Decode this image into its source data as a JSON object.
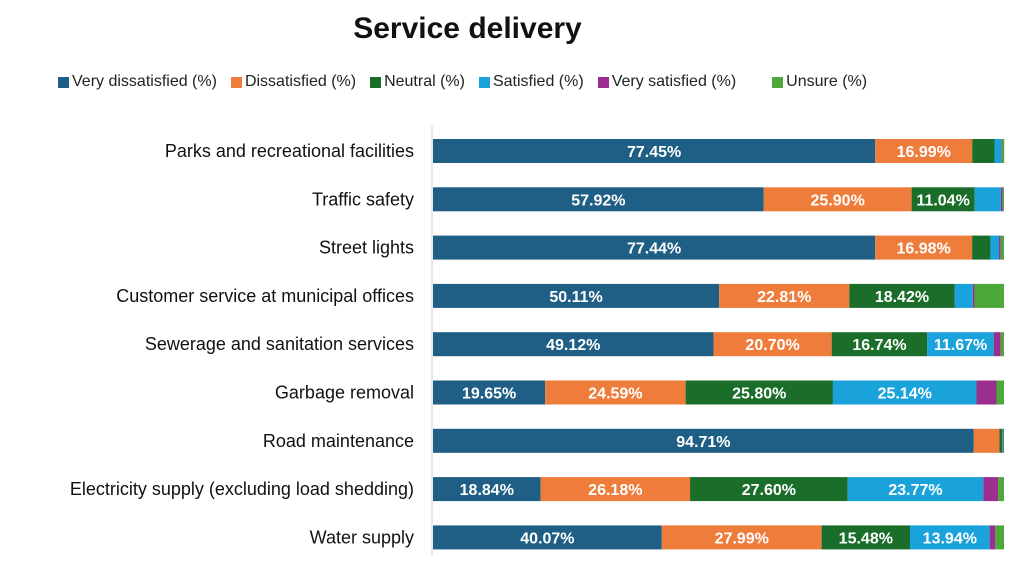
{
  "chart_data": {
    "type": "bar",
    "orientation": "horizontal",
    "stacked": true,
    "title": "Service delivery",
    "legend_position": "top",
    "grid": false,
    "xlim": [
      0,
      100
    ],
    "categories": [
      "Parks and recreational facilities",
      "Traffic safety",
      "Street lights",
      "Customer service at municipal offices",
      "Sewerage and sanitation services",
      "Garbage removal",
      "Road maintenance",
      "Electricity supply (excluding load shedding)",
      "Water supply"
    ],
    "series": [
      {
        "name": "Very dissatisfied (%)",
        "color": "#1f5f86",
        "values": [
          77.45,
          57.92,
          77.44,
          50.11,
          49.12,
          19.65,
          94.71,
          18.84,
          40.07
        ]
      },
      {
        "name": "Dissatisfied (%)",
        "color": "#ee7c3a",
        "values": [
          16.99,
          25.9,
          16.98,
          22.81,
          20.7,
          24.59,
          4.5,
          26.18,
          27.99
        ]
      },
      {
        "name": "Neutral (%)",
        "color": "#1a6e2a",
        "values": [
          3.9,
          11.04,
          3.2,
          18.42,
          16.74,
          25.8,
          0.5,
          27.6,
          15.48
        ]
      },
      {
        "name": "Satisfied (%)",
        "color": "#1aa3db",
        "values": [
          1.2,
          4.6,
          1.5,
          3.2,
          11.67,
          25.14,
          0.1,
          23.77,
          13.94
        ]
      },
      {
        "name": "Very satisfied (%)",
        "color": "#9b2e8f",
        "values": [
          0.1,
          0.3,
          0.3,
          0.3,
          1.2,
          3.5,
          0.1,
          2.6,
          1.0
        ]
      },
      {
        "name": "Unsure (%)",
        "color": "#4ba839",
        "values": [
          0.4,
          0.24,
          0.58,
          5.16,
          0.57,
          1.32,
          0.09,
          1.01,
          1.52
        ]
      }
    ],
    "data_labels": [
      [
        "77.45%",
        "16.99%",
        "",
        "",
        "",
        ""
      ],
      [
        "57.92%",
        "25.90%",
        "11.04%",
        "",
        "",
        ""
      ],
      [
        "77.44%",
        "16.98%",
        "",
        "",
        "",
        ""
      ],
      [
        "50.11%",
        "22.81%",
        "18.42%",
        "",
        "",
        ""
      ],
      [
        "49.12%",
        "20.70%",
        "16.74%",
        "11.67%",
        "",
        ""
      ],
      [
        "19.65%",
        "24.59%",
        "25.80%",
        "25.14%",
        "",
        ""
      ],
      [
        "94.71%",
        "",
        "",
        "",
        "",
        ""
      ],
      [
        "18.84%",
        "26.18%",
        "27.60%",
        "23.77%",
        "",
        ""
      ],
      [
        "40.07%",
        "27.99%",
        "15.48%",
        "13.94%",
        "",
        ""
      ]
    ]
  }
}
